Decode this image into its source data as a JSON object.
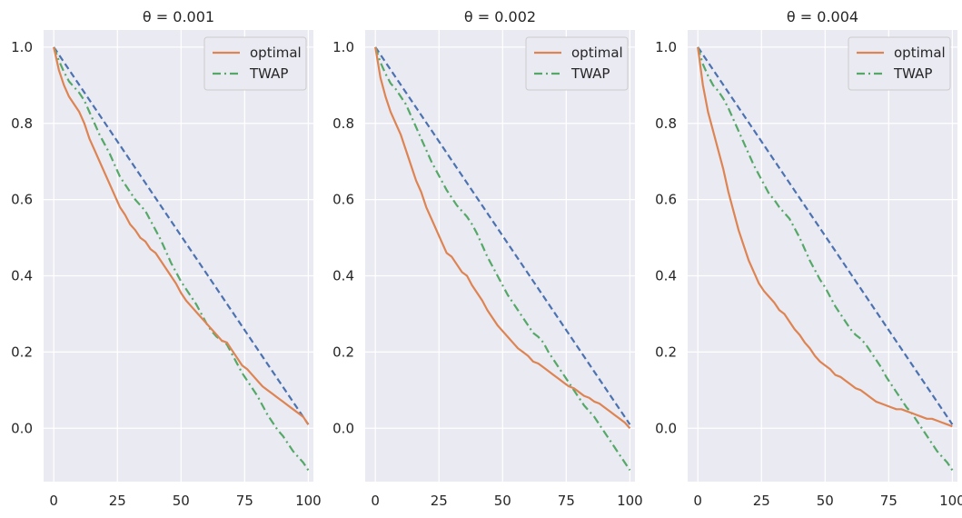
{
  "chart_data": [
    {
      "type": "line",
      "title": "θ = 0.001",
      "xlim": [
        -4,
        102
      ],
      "ylim": [
        -0.14,
        1.045
      ],
      "xticks": [
        0,
        25,
        50,
        75,
        100
      ],
      "yticks": [
        0.0,
        0.2,
        0.4,
        0.6,
        0.8,
        1.0
      ],
      "xtick_labels": [
        "0",
        "25",
        "50",
        "75",
        "100"
      ],
      "ytick_labels": [
        "0.0",
        "0.2",
        "0.4",
        "0.6",
        "0.8",
        "1.0"
      ],
      "legend": {
        "location": "top-right",
        "entries": [
          "optimal",
          "TWAP"
        ]
      },
      "series": [
        {
          "name": "optimal",
          "color": "#dd8452",
          "dash": "solid",
          "in_legend": true,
          "x": [
            0,
            2,
            4,
            6,
            8,
            10,
            12,
            14,
            16,
            18,
            20,
            22,
            24,
            26,
            28,
            30,
            32,
            34,
            36,
            38,
            40,
            42,
            44,
            46,
            48,
            50,
            52,
            54,
            56,
            58,
            60,
            62,
            64,
            66,
            68,
            70,
            72,
            74,
            76,
            78,
            80,
            82,
            84,
            86,
            88,
            90,
            92,
            94,
            96,
            98,
            100
          ],
          "values": [
            1.0,
            0.94,
            0.9,
            0.87,
            0.85,
            0.83,
            0.8,
            0.76,
            0.73,
            0.7,
            0.67,
            0.64,
            0.61,
            0.58,
            0.56,
            0.535,
            0.52,
            0.5,
            0.49,
            0.47,
            0.46,
            0.44,
            0.42,
            0.4,
            0.38,
            0.355,
            0.335,
            0.32,
            0.305,
            0.29,
            0.275,
            0.26,
            0.245,
            0.23,
            0.225,
            0.205,
            0.185,
            0.165,
            0.155,
            0.14,
            0.125,
            0.11,
            0.1,
            0.09,
            0.08,
            0.07,
            0.06,
            0.05,
            0.04,
            0.03,
            0.01
          ]
        },
        {
          "name": "TWAP",
          "color": "#55a868",
          "dash": "dashdot",
          "in_legend": true,
          "x": [
            0,
            2,
            4,
            6,
            8,
            10,
            12,
            14,
            16,
            18,
            20,
            22,
            24,
            26,
            28,
            30,
            32,
            34,
            36,
            38,
            40,
            42,
            44,
            46,
            48,
            50,
            52,
            54,
            56,
            58,
            60,
            62,
            64,
            66,
            68,
            70,
            72,
            74,
            76,
            78,
            80,
            82,
            84,
            86,
            88,
            90,
            92,
            94,
            96,
            98,
            100
          ],
          "values": [
            1.0,
            0.965,
            0.935,
            0.91,
            0.895,
            0.88,
            0.86,
            0.83,
            0.8,
            0.77,
            0.745,
            0.72,
            0.69,
            0.66,
            0.64,
            0.62,
            0.6,
            0.585,
            0.57,
            0.545,
            0.52,
            0.495,
            0.465,
            0.435,
            0.41,
            0.385,
            0.365,
            0.345,
            0.325,
            0.3,
            0.275,
            0.255,
            0.24,
            0.23,
            0.22,
            0.195,
            0.17,
            0.145,
            0.125,
            0.105,
            0.085,
            0.06,
            0.035,
            0.015,
            -0.005,
            -0.02,
            -0.04,
            -0.06,
            -0.075,
            -0.09,
            -0.11
          ]
        },
        {
          "name": "linear",
          "color": "#4c72b0",
          "dash": "dashed",
          "in_legend": false,
          "x": [
            0,
            100
          ],
          "values": [
            1.0,
            0.01
          ]
        }
      ]
    },
    {
      "type": "line",
      "title": "θ = 0.002",
      "xlim": [
        -4,
        102
      ],
      "ylim": [
        -0.14,
        1.045
      ],
      "xticks": [
        0,
        25,
        50,
        75,
        100
      ],
      "yticks": [
        0.0,
        0.2,
        0.4,
        0.6,
        0.8,
        1.0
      ],
      "xtick_labels": [
        "0",
        "25",
        "50",
        "75",
        "100"
      ],
      "ytick_labels": [
        "0.0",
        "0.2",
        "0.4",
        "0.6",
        "0.8",
        "1.0"
      ],
      "legend": {
        "location": "top-right",
        "entries": [
          "optimal",
          "TWAP"
        ]
      },
      "series": [
        {
          "name": "optimal",
          "color": "#dd8452",
          "dash": "solid",
          "in_legend": true,
          "x": [
            0,
            2,
            4,
            6,
            8,
            10,
            12,
            14,
            16,
            18,
            20,
            22,
            24,
            26,
            28,
            30,
            32,
            34,
            36,
            38,
            40,
            42,
            44,
            46,
            48,
            50,
            52,
            54,
            56,
            58,
            60,
            62,
            64,
            66,
            68,
            70,
            72,
            74,
            76,
            78,
            80,
            82,
            84,
            86,
            88,
            90,
            92,
            94,
            96,
            98,
            100
          ],
          "values": [
            1.0,
            0.92,
            0.87,
            0.83,
            0.8,
            0.77,
            0.73,
            0.69,
            0.65,
            0.62,
            0.58,
            0.55,
            0.52,
            0.49,
            0.46,
            0.45,
            0.43,
            0.41,
            0.4,
            0.375,
            0.355,
            0.335,
            0.31,
            0.29,
            0.27,
            0.255,
            0.24,
            0.225,
            0.21,
            0.2,
            0.19,
            0.175,
            0.17,
            0.16,
            0.15,
            0.14,
            0.13,
            0.12,
            0.11,
            0.105,
            0.095,
            0.085,
            0.08,
            0.07,
            0.065,
            0.055,
            0.045,
            0.035,
            0.025,
            0.015,
            0.0
          ]
        },
        {
          "name": "TWAP",
          "color": "#55a868",
          "dash": "dashdot",
          "in_legend": true,
          "x": [
            0,
            2,
            4,
            6,
            8,
            10,
            12,
            14,
            16,
            18,
            20,
            22,
            24,
            26,
            28,
            30,
            32,
            34,
            36,
            38,
            40,
            42,
            44,
            46,
            48,
            50,
            52,
            54,
            56,
            58,
            60,
            62,
            64,
            66,
            68,
            70,
            72,
            74,
            76,
            78,
            80,
            82,
            84,
            86,
            88,
            90,
            92,
            94,
            96,
            98,
            100
          ],
          "values": [
            1.0,
            0.96,
            0.93,
            0.905,
            0.89,
            0.87,
            0.85,
            0.82,
            0.79,
            0.76,
            0.73,
            0.7,
            0.675,
            0.65,
            0.625,
            0.605,
            0.585,
            0.57,
            0.555,
            0.535,
            0.51,
            0.48,
            0.45,
            0.425,
            0.4,
            0.375,
            0.35,
            0.33,
            0.31,
            0.29,
            0.27,
            0.25,
            0.24,
            0.225,
            0.2,
            0.18,
            0.16,
            0.14,
            0.12,
            0.1,
            0.08,
            0.06,
            0.045,
            0.03,
            0.01,
            -0.01,
            -0.03,
            -0.05,
            -0.07,
            -0.09,
            -0.11
          ]
        },
        {
          "name": "linear",
          "color": "#4c72b0",
          "dash": "dashed",
          "in_legend": false,
          "x": [
            0,
            100
          ],
          "values": [
            1.0,
            0.01
          ]
        }
      ]
    },
    {
      "type": "line",
      "title": "θ = 0.004",
      "xlim": [
        -4,
        102
      ],
      "ylim": [
        -0.14,
        1.045
      ],
      "xticks": [
        0,
        25,
        50,
        75,
        100
      ],
      "yticks": [
        0.0,
        0.2,
        0.4,
        0.6,
        0.8,
        1.0
      ],
      "xtick_labels": [
        "0",
        "25",
        "50",
        "75",
        "100"
      ],
      "ytick_labels": [
        "0.0",
        "0.2",
        "0.4",
        "0.6",
        "0.8",
        "1.0"
      ],
      "legend": {
        "location": "top-right",
        "entries": [
          "optimal",
          "TWAP"
        ]
      },
      "series": [
        {
          "name": "optimal",
          "color": "#dd8452",
          "dash": "solid",
          "in_legend": true,
          "x": [
            0,
            2,
            4,
            6,
            8,
            10,
            12,
            14,
            16,
            18,
            20,
            22,
            24,
            26,
            28,
            30,
            32,
            34,
            36,
            38,
            40,
            42,
            44,
            46,
            48,
            50,
            52,
            54,
            56,
            58,
            60,
            62,
            64,
            66,
            68,
            70,
            72,
            74,
            76,
            78,
            80,
            82,
            84,
            86,
            88,
            90,
            92,
            94,
            96,
            98,
            100
          ],
          "values": [
            1.0,
            0.9,
            0.83,
            0.78,
            0.73,
            0.68,
            0.62,
            0.57,
            0.52,
            0.48,
            0.44,
            0.41,
            0.38,
            0.36,
            0.345,
            0.33,
            0.31,
            0.3,
            0.28,
            0.26,
            0.245,
            0.225,
            0.21,
            0.19,
            0.175,
            0.165,
            0.155,
            0.14,
            0.135,
            0.125,
            0.115,
            0.105,
            0.1,
            0.09,
            0.08,
            0.07,
            0.065,
            0.06,
            0.055,
            0.05,
            0.05,
            0.045,
            0.04,
            0.035,
            0.03,
            0.025,
            0.025,
            0.02,
            0.015,
            0.01,
            0.005
          ]
        },
        {
          "name": "TWAP",
          "color": "#55a868",
          "dash": "dashdot",
          "in_legend": true,
          "x": [
            0,
            2,
            4,
            6,
            8,
            10,
            12,
            14,
            16,
            18,
            20,
            22,
            24,
            26,
            28,
            30,
            32,
            34,
            36,
            38,
            40,
            42,
            44,
            46,
            48,
            50,
            52,
            54,
            56,
            58,
            60,
            62,
            64,
            66,
            68,
            70,
            72,
            74,
            76,
            78,
            80,
            82,
            84,
            86,
            88,
            90,
            92,
            94,
            96,
            98,
            100
          ],
          "values": [
            1.0,
            0.955,
            0.925,
            0.9,
            0.885,
            0.865,
            0.84,
            0.81,
            0.78,
            0.75,
            0.72,
            0.69,
            0.665,
            0.64,
            0.615,
            0.6,
            0.58,
            0.565,
            0.55,
            0.525,
            0.5,
            0.47,
            0.44,
            0.415,
            0.39,
            0.37,
            0.345,
            0.32,
            0.3,
            0.28,
            0.26,
            0.245,
            0.235,
            0.22,
            0.2,
            0.18,
            0.16,
            0.135,
            0.115,
            0.095,
            0.075,
            0.055,
            0.04,
            0.02,
            0.0,
            -0.02,
            -0.04,
            -0.06,
            -0.075,
            -0.09,
            -0.11
          ]
        },
        {
          "name": "linear",
          "color": "#4c72b0",
          "dash": "dashed",
          "in_legend": false,
          "x": [
            0,
            100
          ],
          "values": [
            1.0,
            0.01
          ]
        }
      ]
    }
  ]
}
